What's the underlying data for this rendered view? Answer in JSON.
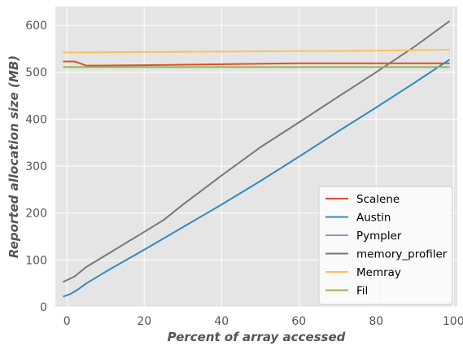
{
  "chart_data": {
    "type": "line",
    "title": "",
    "xlabel": "Percent of array accessed",
    "ylabel": "Reported allocation size (MB)",
    "xlim": [
      -3,
      101
    ],
    "ylim": [
      0,
      640
    ],
    "xticks": [
      0,
      20,
      40,
      60,
      80,
      100
    ],
    "yticks": [
      0,
      100,
      200,
      300,
      400,
      500,
      600
    ],
    "grid": true,
    "legend_position": "lower-right",
    "series": [
      {
        "name": "Scalene",
        "color": "#E24A33",
        "points": [
          [
            -1,
            523
          ],
          [
            2,
            523
          ],
          [
            5,
            514
          ],
          [
            20,
            515
          ],
          [
            40,
            517
          ],
          [
            60,
            519
          ],
          [
            80,
            519
          ],
          [
            99,
            519
          ]
        ]
      },
      {
        "name": "Austin",
        "color": "#348ABD",
        "points": [
          [
            -1,
            22
          ],
          [
            1,
            28
          ],
          [
            3,
            38
          ],
          [
            5,
            50
          ],
          [
            10,
            75
          ],
          [
            20,
            122
          ],
          [
            30,
            170
          ],
          [
            40,
            218
          ],
          [
            50,
            268
          ],
          [
            60,
            320
          ],
          [
            70,
            373
          ],
          [
            80,
            425
          ],
          [
            90,
            478
          ],
          [
            99,
            527
          ]
        ]
      },
      {
        "name": "Pympler",
        "color": "#988ED5",
        "points": []
      },
      {
        "name": "memory_profiler",
        "color": "#777777",
        "points": [
          [
            -1,
            53
          ],
          [
            2,
            65
          ],
          [
            5,
            85
          ],
          [
            10,
            110
          ],
          [
            15,
            135
          ],
          [
            20,
            160
          ],
          [
            25,
            185
          ],
          [
            30,
            218
          ],
          [
            40,
            280
          ],
          [
            50,
            340
          ],
          [
            60,
            393
          ],
          [
            70,
            447
          ],
          [
            80,
            500
          ],
          [
            90,
            555
          ],
          [
            99,
            609
          ]
        ]
      },
      {
        "name": "Memray",
        "color": "#FBC15E",
        "points": [
          [
            -1,
            542
          ],
          [
            20,
            543
          ],
          [
            40,
            544
          ],
          [
            60,
            545
          ],
          [
            80,
            546
          ],
          [
            99,
            548
          ]
        ]
      },
      {
        "name": "Fil",
        "color": "#8EBA42",
        "points": [
          [
            -1,
            511
          ],
          [
            20,
            511
          ],
          [
            40,
            511
          ],
          [
            60,
            511
          ],
          [
            80,
            511
          ],
          [
            99,
            511
          ]
        ]
      }
    ]
  }
}
